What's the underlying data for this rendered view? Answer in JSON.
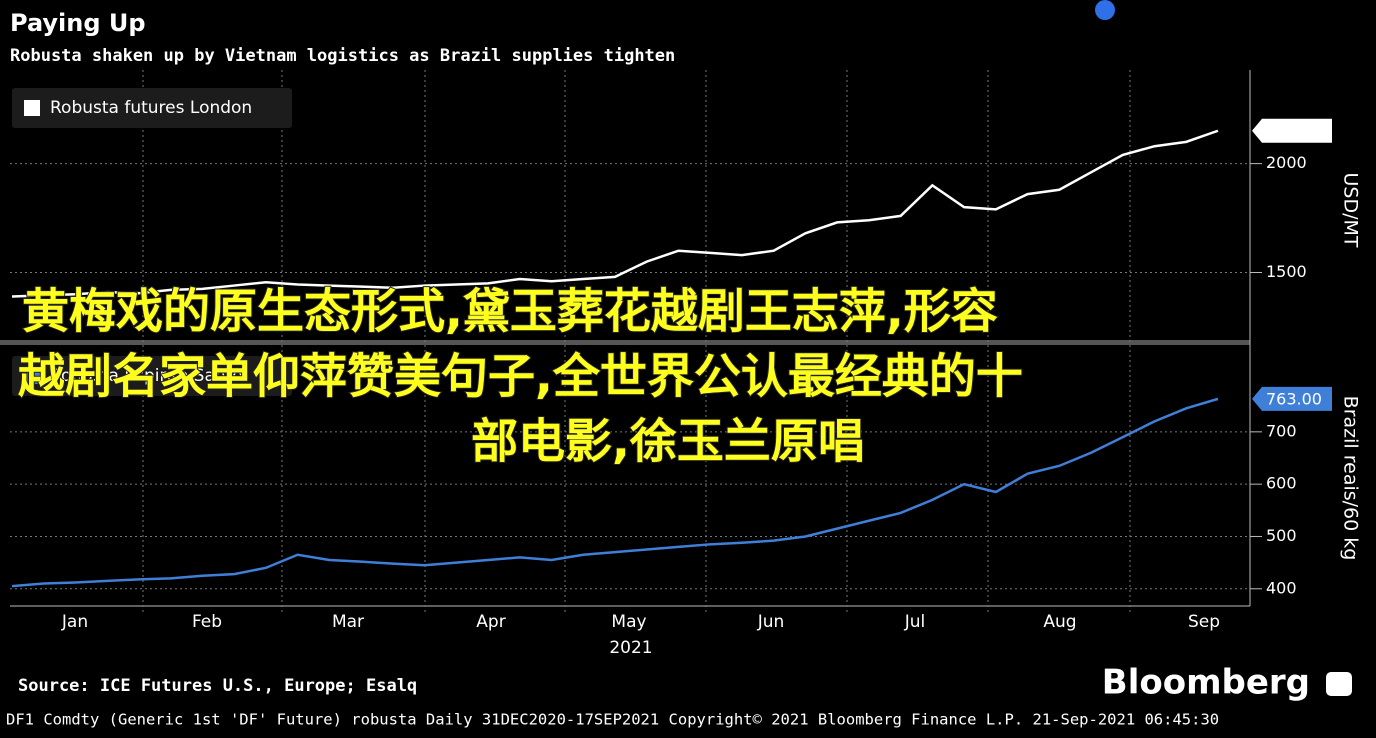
{
  "header": {
    "title": "Paying Up",
    "subtitle": "Robusta shaken up by Vietnam logistics as Brazil supplies tighten"
  },
  "chart_data": [
    {
      "type": "line",
      "axis_label": "USD/MT",
      "ylim": [
        1190,
        2430
      ],
      "yticks": [
        1500,
        2000
      ],
      "grid": true,
      "series": [
        {
          "name": "Robusta futures London",
          "color": "#ffffff",
          "values": [
            1390,
            1395,
            1400,
            1410,
            1405,
            1420,
            1425,
            1440,
            1455,
            1445,
            1440,
            1435,
            1430,
            1440,
            1445,
            1450,
            1470,
            1460,
            1470,
            1480,
            1550,
            1600,
            1590,
            1580,
            1600,
            1680,
            1730,
            1740,
            1760,
            1900,
            1800,
            1790,
            1860,
            1880,
            1960,
            2040,
            2080,
            2100,
            2151
          ]
        }
      ]
    },
    {
      "type": "line",
      "axis_label": "Brazil reais/60 kg",
      "ylim": [
        369,
        866
      ],
      "yticks": [
        400,
        500,
        600,
        700
      ],
      "grid": true,
      "series": [
        {
          "name": "Robusta Espirito Santo",
          "color": "#3f7fd8",
          "values": [
            405,
            410,
            412,
            415,
            418,
            420,
            425,
            428,
            440,
            465,
            455,
            452,
            448,
            445,
            450,
            455,
            460,
            455,
            465,
            470,
            475,
            480,
            485,
            488,
            492,
            500,
            515,
            530,
            545,
            570,
            600,
            585,
            620,
            635,
            660,
            690,
            720,
            745,
            763
          ],
          "value_labels": [
            null,
            null,
            null,
            null,
            null,
            null,
            null,
            null,
            null,
            null,
            null,
            null,
            null,
            null,
            null,
            null,
            null,
            null,
            null,
            null,
            null,
            null,
            null,
            null,
            null,
            null,
            null,
            null,
            null,
            null,
            null,
            null,
            null,
            null,
            null,
            null,
            null,
            null,
            "763.00"
          ]
        }
      ]
    }
  ],
  "x_axis": {
    "categories": [
      "Jan",
      "Feb",
      "Mar",
      "Apr",
      "May",
      "Jun",
      "Jul",
      "Aug",
      "Sep"
    ],
    "year": "2021"
  },
  "footer": {
    "source": "Source: ICE Futures U.S., Europe; Esalq",
    "brand": "Bloomberg",
    "info": "DF1 Comdty (Generic 1st 'DF' Future) robusta  Daily 31DEC2020-17SEP2021  Copyright© 2021 Bloomberg Finance L.P.  21-Sep-2021 06:45:30"
  },
  "overlay_lines": [
    "黄梅戏的原生态形式,黛玉葬花越剧王志萍,形容",
    "越剧名家单仰萍赞美句子,全世界公认最经典的十",
    "部电影,徐玉兰原唱"
  ]
}
